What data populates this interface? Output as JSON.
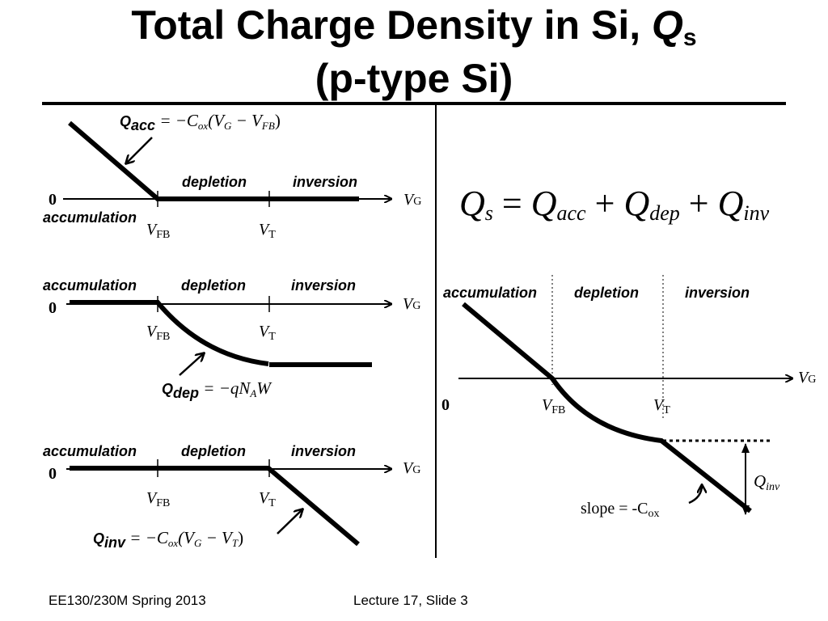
{
  "title": {
    "line1_prefix": "Total Charge Density in Si, ",
    "line1_var": "Q",
    "line1_sub": "s",
    "line2": "(p-type Si)"
  },
  "region_labels": {
    "accumulation": "accumulation",
    "depletion": "depletion",
    "inversion": "inversion"
  },
  "axis": {
    "zero": "0",
    "v": "V",
    "v_sub_g": "G",
    "v_sub_fb": "FB",
    "v_sub_t": "T"
  },
  "panel_acc": {
    "eq_q": "Q",
    "eq_sub": "acc",
    "eq_rhs_1": " = −C",
    "eq_rhs_1_sub": "ox",
    "eq_rhs_2": "(V",
    "eq_rhs_2_sub": "G",
    "eq_rhs_3": " − V",
    "eq_rhs_3_sub": "FB",
    "eq_rhs_4": ")"
  },
  "panel_dep": {
    "eq_q": "Q",
    "eq_sub": "dep",
    "eq_rhs_1": " = −qN",
    "eq_rhs_1_sub": "A",
    "eq_rhs_2": "W"
  },
  "panel_inv": {
    "eq_q": "Q",
    "eq_sub": "inv",
    "eq_rhs_1": " = −C",
    "eq_rhs_1_sub": "ox",
    "eq_rhs_2": "(V",
    "eq_rhs_2_sub": "G",
    "eq_rhs_3": " − V",
    "eq_rhs_3_sub": "T",
    "eq_rhs_4": ")"
  },
  "sum_eq": {
    "q": "Q",
    "s": "s",
    "acc": "acc",
    "dep": "dep",
    "inv": "inv",
    "eq": " = ",
    "plus": " + "
  },
  "total_panel": {
    "qinv_q": "Q",
    "qinv_sub": "inv",
    "slope_text": "slope = -C",
    "slope_sub": "ox"
  },
  "footer": {
    "course": "EE130/230M Spring 2013",
    "slide": "Lecture 17, Slide 3"
  }
}
